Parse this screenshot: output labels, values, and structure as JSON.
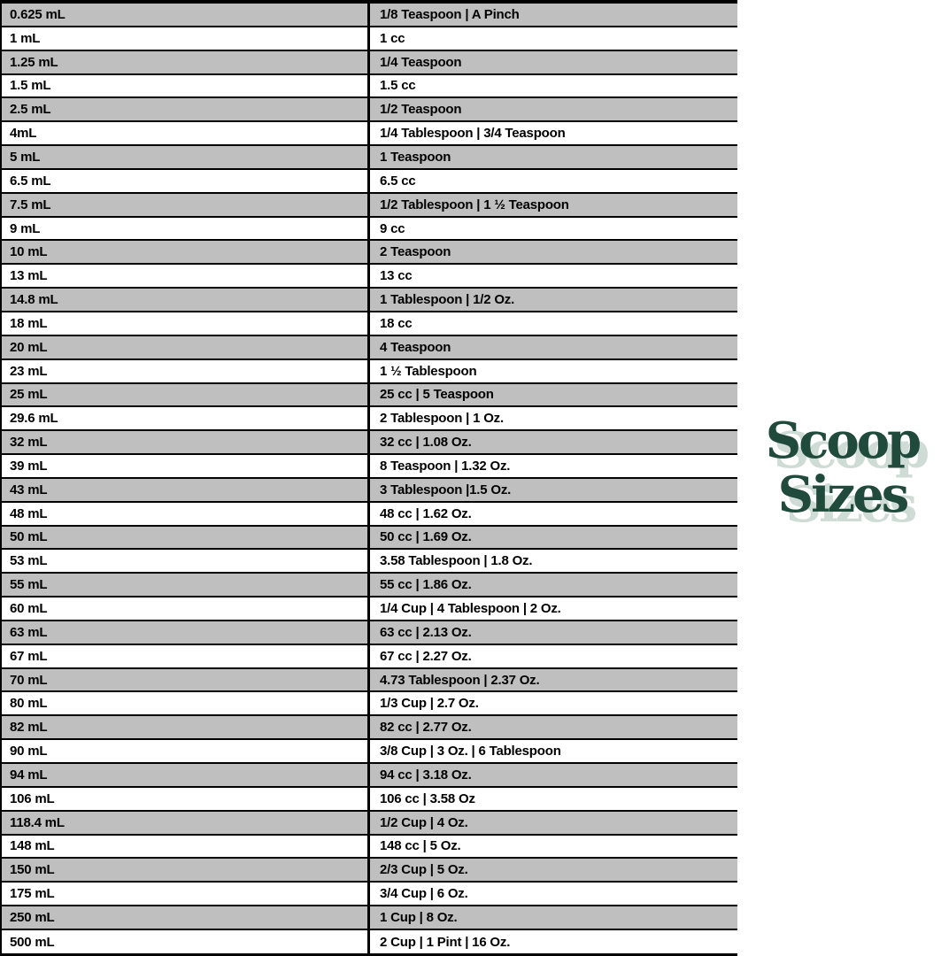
{
  "page": {
    "background": "#ffffff"
  },
  "logo": {
    "line1": "Scoop",
    "line2": "Sizes",
    "text_color": "#1f4a3c",
    "shadow_color": "#cfdcd5"
  },
  "table": {
    "row_shade_color": "#bfbfbf",
    "border_color": "#000000",
    "rows": [
      {
        "ml": "0.625 mL",
        "equivalent": "1/8 Teaspoon | A Pinch"
      },
      {
        "ml": "1 mL",
        "equivalent": "1 cc"
      },
      {
        "ml": "1.25 mL",
        "equivalent": "1/4 Teaspoon"
      },
      {
        "ml": "1.5 mL",
        "equivalent": "1.5 cc"
      },
      {
        "ml": "2.5 mL",
        "equivalent": "1/2 Teaspoon"
      },
      {
        "ml": "4mL",
        "equivalent": "1/4 Tablespoon | 3/4 Teaspoon"
      },
      {
        "ml": "5 mL",
        "equivalent": "1 Teaspoon"
      },
      {
        "ml": "6.5 mL",
        "equivalent": "6.5 cc"
      },
      {
        "ml": "7.5 mL",
        "equivalent": "1/2 Tablespoon | 1 ½ Teaspoon"
      },
      {
        "ml": "9 mL",
        "equivalent": "9 cc"
      },
      {
        "ml": "10 mL",
        "equivalent": "2 Teaspoon"
      },
      {
        "ml": "13 mL",
        "equivalent": "13 cc"
      },
      {
        "ml": "14.8 mL",
        "equivalent": "1 Tablespoon | 1/2 Oz."
      },
      {
        "ml": "18 mL",
        "equivalent": "18 cc"
      },
      {
        "ml": "20 mL",
        "equivalent": "4 Teaspoon"
      },
      {
        "ml": "23 mL",
        "equivalent": "1 ½ Tablespoon"
      },
      {
        "ml": "25 mL",
        "equivalent": "25 cc | 5 Teaspoon"
      },
      {
        "ml": "29.6 mL",
        "equivalent": "2 Tablespoon | 1 Oz."
      },
      {
        "ml": "32 mL",
        "equivalent": "32 cc | 1.08 Oz."
      },
      {
        "ml": "39 mL",
        "equivalent": "8 Teaspoon | 1.32 Oz."
      },
      {
        "ml": "43 mL",
        "equivalent": "3 Tablespoon |1.5 Oz."
      },
      {
        "ml": "48 mL",
        "equivalent": "48 cc | 1.62 Oz."
      },
      {
        "ml": "50 mL",
        "equivalent": "50 cc | 1.69 Oz."
      },
      {
        "ml": "53 mL",
        "equivalent": "3.58 Tablespoon | 1.8 Oz."
      },
      {
        "ml": "55 mL",
        "equivalent": "55 cc | 1.86 Oz."
      },
      {
        "ml": "60 mL",
        "equivalent": "1/4 Cup | 4 Tablespoon | 2 Oz."
      },
      {
        "ml": "63 mL",
        "equivalent": "63 cc | 2.13 Oz."
      },
      {
        "ml": "67 mL",
        "equivalent": "67 cc | 2.27 Oz."
      },
      {
        "ml": "70 mL",
        "equivalent": "4.73 Tablespoon | 2.37 Oz."
      },
      {
        "ml": "80 mL",
        "equivalent": "1/3 Cup | 2.7 Oz."
      },
      {
        "ml": "82 mL",
        "equivalent": "82 cc | 2.77 Oz."
      },
      {
        "ml": "90 mL",
        "equivalent": "3/8 Cup | 3 Oz. | 6 Tablespoon"
      },
      {
        "ml": "94 mL",
        "equivalent": "94 cc | 3.18 Oz."
      },
      {
        "ml": "106 mL",
        "equivalent": "106 cc | 3.58 Oz"
      },
      {
        "ml": "118.4 mL",
        "equivalent": "1/2 Cup | 4 Oz."
      },
      {
        "ml": "148 mL",
        "equivalent": "148 cc | 5 Oz."
      },
      {
        "ml": "150 mL",
        "equivalent": "2/3 Cup | 5 Oz."
      },
      {
        "ml": "175 mL",
        "equivalent": "3/4 Cup | 6 Oz."
      },
      {
        "ml": "250 mL",
        "equivalent": "1 Cup | 8 Oz."
      },
      {
        "ml": "500 mL",
        "equivalent": "2 Cup | 1 Pint | 16 Oz."
      }
    ]
  }
}
